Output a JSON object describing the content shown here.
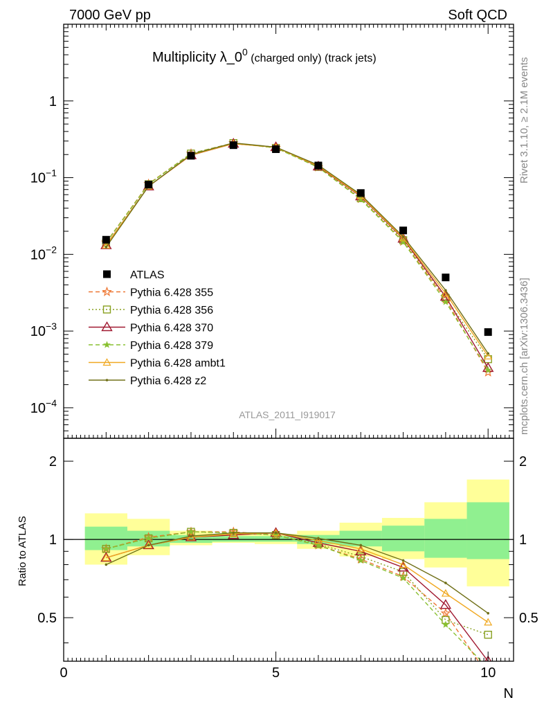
{
  "header": {
    "left": "7000 GeV pp",
    "right": "Soft QCD",
    "title_main": "Multiplicity λ_0",
    "title_sup": "0",
    "title_sub": " (charged only) (track jets)"
  },
  "side_text": {
    "rivet": "Rivet 3.1.10, ≥ 2.1M events",
    "mcplots": "mcplots.cern.ch [arXiv:1306.3436]"
  },
  "analysis_tag": "ATLAS_2011_I919017",
  "colors": {
    "ATLAS": "#000000",
    "p355": "#ee7733",
    "p356": "#88a020",
    "p370": "#a01830",
    "p379": "#88c030",
    "ambt1": "#f0a820",
    "z2": "#707018",
    "band_inner": "#90f090",
    "band_outer": "#ffff99"
  },
  "chart_data": [
    {
      "type": "line",
      "panel": "main",
      "title": "Multiplicity λ_0^0 (charged only) (track jets)",
      "xlabel": "N",
      "ylabel": "",
      "xlim": [
        0,
        10.6
      ],
      "ylim": [
        4e-05,
        10
      ],
      "yscale": "log",
      "yticks": [
        {
          "value": 0.0001,
          "base": "10",
          "exp": "−4"
        },
        {
          "value": 0.001,
          "base": "10",
          "exp": "−3"
        },
        {
          "value": 0.01,
          "base": "10",
          "exp": "−2"
        },
        {
          "value": 0.1,
          "base": "10",
          "exp": "−1"
        },
        {
          "value": 1,
          "base": "1",
          "exp": ""
        }
      ],
      "x": [
        1,
        2,
        3,
        4,
        5,
        6,
        7,
        8,
        9,
        10
      ],
      "legend": [
        {
          "key": "ATLAS",
          "label": "ATLAS"
        },
        {
          "key": "p355",
          "label": "Pythia 6.428 355"
        },
        {
          "key": "p356",
          "label": "Pythia 6.428 356"
        },
        {
          "key": "p370",
          "label": "Pythia 6.428 370"
        },
        {
          "key": "p379",
          "label": "Pythia 6.428 379"
        },
        {
          "key": "ambt1",
          "label": "Pythia 6.428 ambt1"
        },
        {
          "key": "z2",
          "label": "Pythia 6.428 z2"
        }
      ],
      "series": [
        {
          "key": "ATLAS",
          "name": "ATLAS",
          "values": [
            0.0155,
            0.081,
            0.193,
            0.265,
            0.235,
            0.144,
            0.063,
            0.0205,
            0.005,
            0.00097
          ]
        },
        {
          "key": "p355",
          "name": "Pythia 6.428 355",
          "values": [
            0.0143,
            0.083,
            0.207,
            0.283,
            0.245,
            0.137,
            0.053,
            0.0147,
            0.0026,
            0.00029
          ]
        },
        {
          "key": "p356",
          "name": "Pythia 6.428 356",
          "values": [
            0.0142,
            0.082,
            0.206,
            0.282,
            0.244,
            0.138,
            0.054,
            0.0153,
            0.0027,
            0.00043
          ]
        },
        {
          "key": "p370",
          "name": "Pythia 6.428 370",
          "values": [
            0.0132,
            0.077,
            0.196,
            0.277,
            0.25,
            0.14,
            0.057,
            0.016,
            0.0028,
            0.00033
          ]
        },
        {
          "key": "p379",
          "name": "Pythia 6.428 379",
          "values": [
            0.0142,
            0.082,
            0.206,
            0.282,
            0.244,
            0.136,
            0.052,
            0.0145,
            0.0024,
            0.00031
          ]
        },
        {
          "key": "ambt1",
          "name": "Pythia 6.428 ambt1",
          "values": [
            0.0131,
            0.077,
            0.197,
            0.277,
            0.249,
            0.142,
            0.058,
            0.0163,
            0.0031,
            0.00047
          ]
        },
        {
          "key": "z2",
          "name": "Pythia 6.428 z2",
          "values": [
            0.0124,
            0.077,
            0.2,
            0.283,
            0.25,
            0.146,
            0.06,
            0.017,
            0.0034,
            0.00051
          ]
        }
      ]
    },
    {
      "type": "line",
      "panel": "ratio",
      "xlabel": "N",
      "ylabel": "Ratio to ATLAS",
      "xlim": [
        0,
        10.6
      ],
      "ylim": [
        0.34,
        2.45
      ],
      "yscale": "log",
      "yticks": [
        0.5,
        1,
        2
      ],
      "xticks": [
        0,
        5,
        10
      ],
      "x": [
        1,
        2,
        3,
        4,
        5,
        6,
        7,
        8,
        9,
        10
      ],
      "band_inner": [
        [
          0.91,
          1.12
        ],
        [
          0.94,
          1.08
        ],
        [
          0.97,
          1.04
        ],
        [
          0.98,
          1.03
        ],
        [
          0.98,
          1.03
        ],
        [
          0.96,
          1.04
        ],
        [
          0.94,
          1.08
        ],
        [
          0.9,
          1.13
        ],
        [
          0.85,
          1.2
        ],
        [
          0.84,
          1.39
        ]
      ],
      "band_outer": [
        [
          0.8,
          1.26
        ],
        [
          0.87,
          1.2
        ],
        [
          0.95,
          1.08
        ],
        [
          0.97,
          1.05
        ],
        [
          0.96,
          1.05
        ],
        [
          0.92,
          1.08
        ],
        [
          0.86,
          1.16
        ],
        [
          0.84,
          1.21
        ],
        [
          0.78,
          1.39
        ],
        [
          0.66,
          1.7
        ]
      ],
      "series": [
        {
          "key": "p355",
          "name": "Pythia 6.428 355",
          "values": [
            0.92,
            1.02,
            1.07,
            1.07,
            1.04,
            0.95,
            0.84,
            0.72,
            0.52,
            0.3
          ]
        },
        {
          "key": "p356",
          "name": "Pythia 6.428 356",
          "values": [
            0.92,
            1.01,
            1.07,
            1.06,
            1.04,
            0.96,
            0.86,
            0.75,
            0.49,
            0.43
          ]
        },
        {
          "key": "p370",
          "name": "Pythia 6.428 370",
          "values": [
            0.85,
            0.95,
            1.02,
            1.04,
            1.06,
            0.97,
            0.9,
            0.78,
            0.56,
            0.34
          ]
        },
        {
          "key": "p379",
          "name": "Pythia 6.428 379",
          "values": [
            0.92,
            1.01,
            1.07,
            1.06,
            1.04,
            0.95,
            0.83,
            0.71,
            0.47,
            0.32
          ]
        },
        {
          "key": "ambt1",
          "name": "Pythia 6.428 ambt1",
          "values": [
            0.85,
            0.95,
            1.02,
            1.05,
            1.06,
            0.99,
            0.92,
            0.8,
            0.62,
            0.48
          ]
        },
        {
          "key": "z2",
          "name": "Pythia 6.428 z2",
          "values": [
            0.8,
            0.95,
            1.03,
            1.06,
            1.06,
            1.01,
            0.95,
            0.83,
            0.68,
            0.52
          ]
        }
      ]
    }
  ]
}
